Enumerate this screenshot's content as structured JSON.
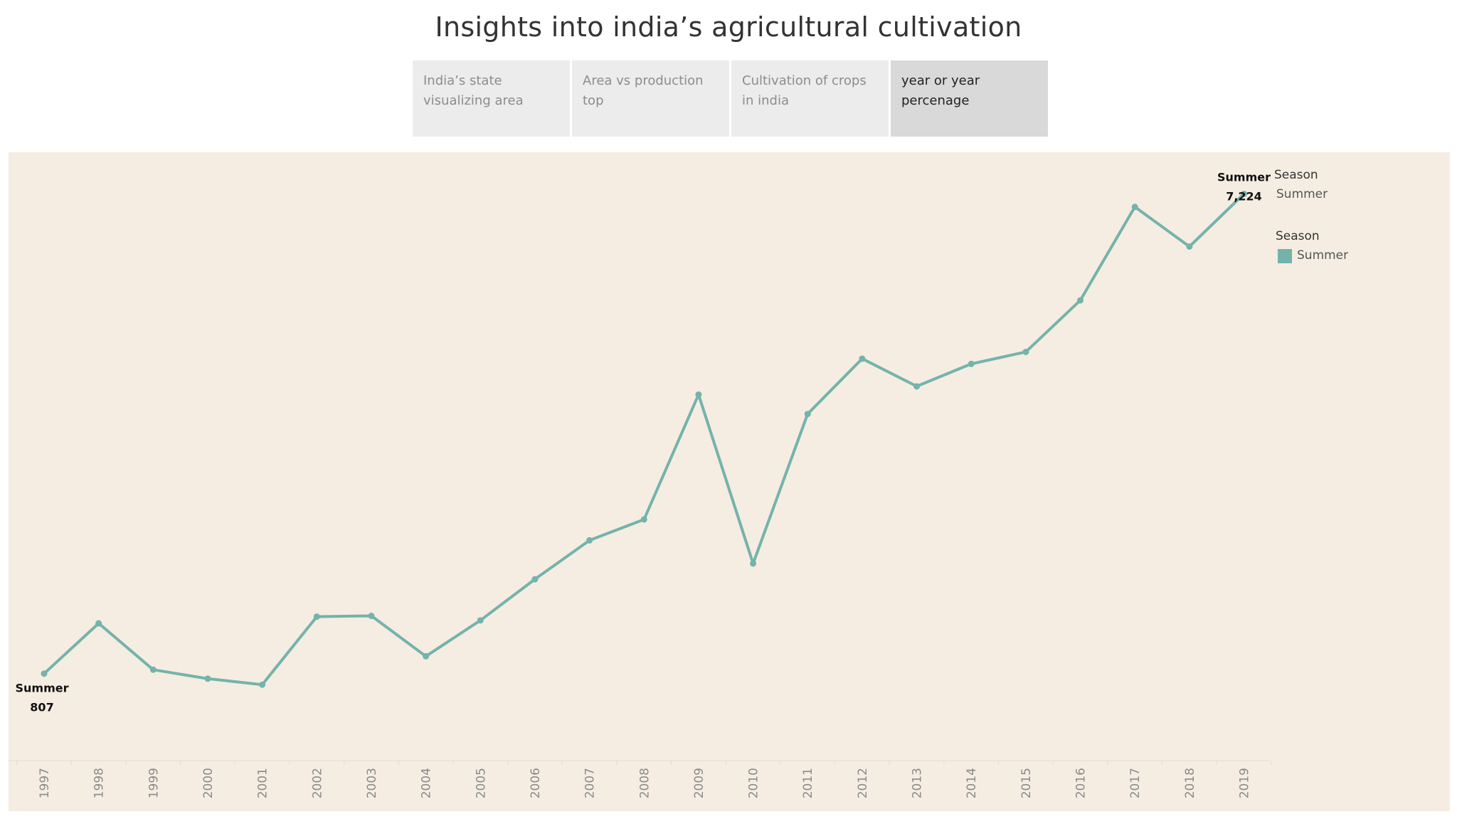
{
  "dashboard": {
    "title": "Insights into india’s agricultural cultivation"
  },
  "tabs": [
    {
      "label": "India’s state visualizing area",
      "active": false
    },
    {
      "label": "Area vs production top",
      "active": false
    },
    {
      "label": "Cultivation of crops in india",
      "active": false
    },
    {
      "label": "year or year percenage",
      "active": true
    }
  ],
  "legend": {
    "filter_title": "Season",
    "filter_value": "Summer",
    "color_title": "Season",
    "color_item": "Summer"
  },
  "colors": {
    "line": "#74b3ab",
    "panel_background": "#f5ede2"
  },
  "chart_data": {
    "type": "line",
    "x": [
      "1997",
      "1998",
      "1999",
      "2000",
      "2001",
      "2002",
      "2003",
      "2004",
      "2005",
      "2006",
      "2007",
      "2008",
      "2009",
      "2010",
      "2011",
      "2012",
      "2013",
      "2014",
      "2015",
      "2016",
      "2017",
      "2018",
      "2019"
    ],
    "series": [
      {
        "name": "Summer",
        "values": [
          807,
          1480,
          860,
          740,
          660,
          1570,
          1580,
          1040,
          1520,
          2070,
          2590,
          2870,
          4540,
          2280,
          4280,
          5020,
          4650,
          4950,
          5110,
          5800,
          7050,
          6520,
          7224
        ]
      }
    ],
    "annotations": [
      {
        "x": "1997",
        "label": "Summer",
        "value": "807"
      },
      {
        "x": "2019",
        "label": "Summer",
        "value": "7,224"
      }
    ],
    "ylim": [
      500,
      7400
    ],
    "grid": false,
    "legend": "right"
  }
}
